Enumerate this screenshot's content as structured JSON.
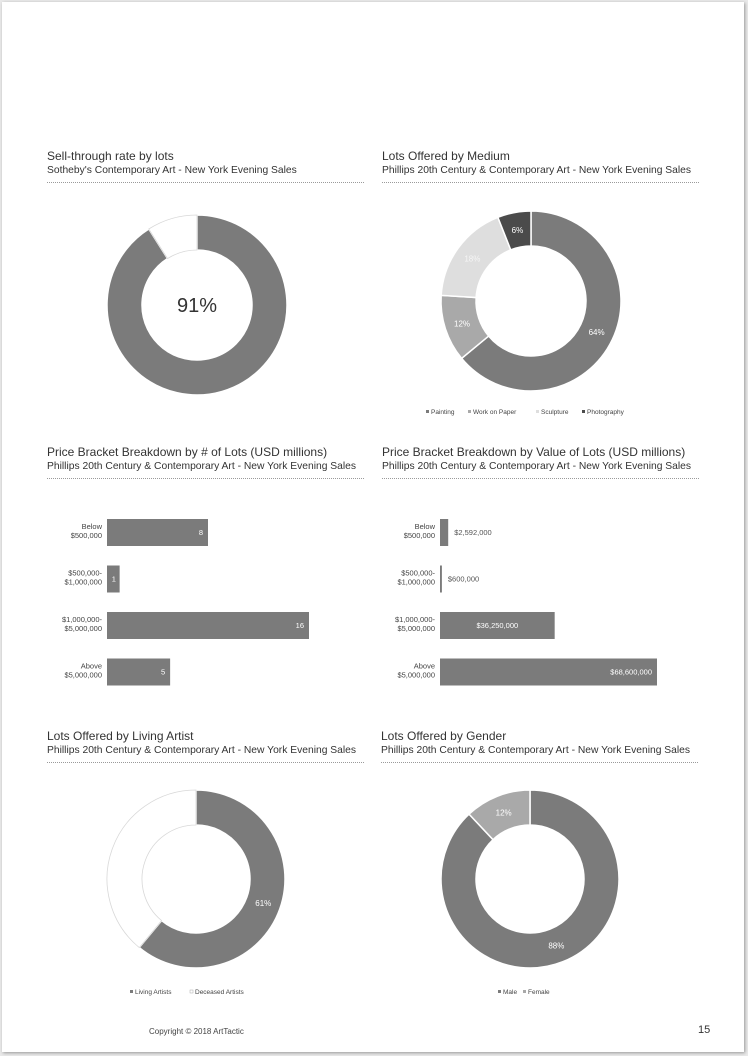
{
  "footer": {
    "copyright": "Copyright © 2018 ArtTactic",
    "page_number": "15"
  },
  "colors": {
    "dark": "#7b7b7b",
    "darkest": "#4b4b4b",
    "mid": "#a9a9a9",
    "light": "#dedede",
    "white": "#ffffff"
  },
  "chart_data": [
    {
      "id": "sell-through",
      "type": "pie",
      "title": "Sell-through rate by lots",
      "subtitle": "Sotheby's Contemporary Art - New York Evening Sales",
      "center_label": "91%",
      "slices": [
        {
          "value": 91,
          "color": "#7b7b7b"
        },
        {
          "value": 9,
          "color": "#ffffff"
        }
      ]
    },
    {
      "id": "medium",
      "type": "pie",
      "title": "Lots Offered by Medium",
      "subtitle": "Phillips 20th Century & Contemporary Art - New York Evening Sales",
      "slices": [
        {
          "name": "Painting",
          "value": 64,
          "label": "64%",
          "color": "#7b7b7b"
        },
        {
          "name": "Work on Paper",
          "value": 12,
          "label": "12%",
          "color": "#a9a9a9"
        },
        {
          "name": "Sculpture",
          "value": 18,
          "label": "18%",
          "color": "#dedede"
        },
        {
          "name": "Photography",
          "value": 6,
          "label": "6%",
          "color": "#4b4b4b"
        }
      ],
      "legend": [
        "Painting",
        "Work on Paper",
        "Sculpture",
        "Photography"
      ]
    },
    {
      "id": "bracket-count",
      "type": "bar",
      "orientation": "horizontal",
      "title": "Price Bracket Breakdown by # of Lots (USD millions)",
      "subtitle": "Phillips 20th Century & Contemporary Art - New York Evening Sales",
      "categories": [
        [
          "Below",
          "$500,000"
        ],
        [
          "$500,000-",
          "$1,000,000"
        ],
        [
          "$1,000,000-",
          "$5,000,000"
        ],
        [
          "Above",
          "$5,000,000"
        ]
      ],
      "values": [
        8,
        1,
        16,
        5
      ],
      "value_labels": [
        "8",
        "1",
        "16",
        "5"
      ],
      "xlim": [
        0,
        16
      ]
    },
    {
      "id": "bracket-value",
      "type": "bar",
      "orientation": "horizontal",
      "title": "Price Bracket Breakdown by Value of Lots (USD millions)",
      "subtitle": "Phillips 20th Century & Contemporary Art - New York Evening Sales",
      "categories": [
        [
          "Below",
          "$500,000"
        ],
        [
          "$500,000-",
          "$1,000,000"
        ],
        [
          "$1,000,000-",
          "$5,000,000"
        ],
        [
          "Above",
          "$5,000,000"
        ]
      ],
      "values": [
        2592000,
        600000,
        36250000,
        68600000
      ],
      "value_labels": [
        "$2,592,000",
        "$600,000",
        "$36,250,000",
        "$68,600,000"
      ],
      "xlim": [
        0,
        68600000
      ]
    },
    {
      "id": "living-artist",
      "type": "pie",
      "title": "Lots Offered by Living Artist",
      "subtitle": "Phillips 20th Century & Contemporary Art - New York Evening Sales",
      "slices": [
        {
          "name": "Living Artists",
          "value": 61,
          "label": "61%",
          "color": "#7b7b7b"
        },
        {
          "name": "Deceased Artists",
          "value": 39,
          "label": "",
          "color": "#ffffff"
        }
      ],
      "legend": [
        "Living Artists",
        "Deceased Artists"
      ]
    },
    {
      "id": "gender",
      "type": "pie",
      "title": "Lots Offered by Gender",
      "subtitle": "Phillips 20th Century & Contemporary Art - New York Evening Sales",
      "slices": [
        {
          "name": "Male",
          "value": 88,
          "label": "88%",
          "color": "#7b7b7b"
        },
        {
          "name": "Female",
          "value": 12,
          "label": "12%",
          "color": "#a9a9a9"
        }
      ],
      "legend": [
        "Male",
        "Female"
      ]
    }
  ]
}
